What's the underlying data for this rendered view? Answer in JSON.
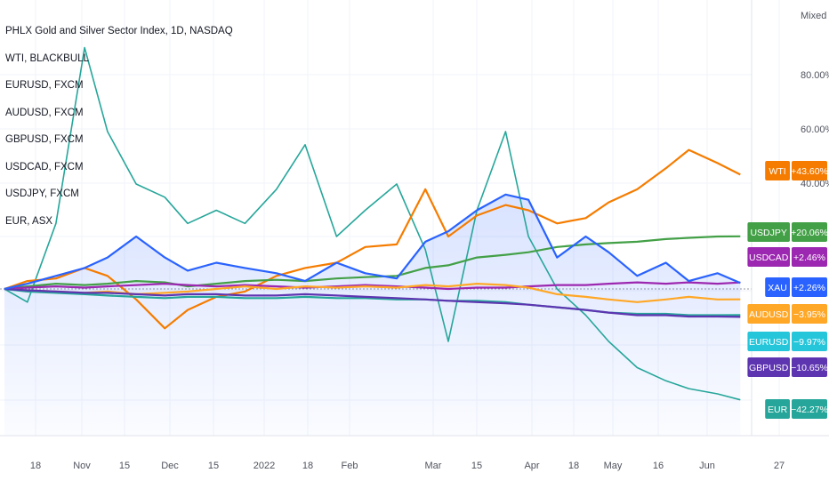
{
  "legend": {
    "main": "PHLX Gold and Silver Sector Index, 1D, NASDAQ",
    "items": [
      "WTI, BLACKBULL",
      "EURUSD, FXCM",
      "AUDUSD, FXCM",
      "GBPUSD, FXCM",
      "USDCAD, FXCM",
      "USDJPY, FXCM",
      "EUR, ASX"
    ]
  },
  "scale_mode": "Mixed",
  "chart_data": {
    "type": "line",
    "xlabels": [
      "18",
      "Nov",
      "15",
      "Dec",
      "15",
      "2022",
      "18",
      "Feb",
      "Mar",
      "15",
      "Apr",
      "18",
      "May",
      "16",
      "Jun",
      "27"
    ],
    "ylabels": [
      "80.00%",
      "60.00%",
      "40.00%"
    ],
    "ylim": [
      -45,
      100
    ],
    "x": [
      "2021-10-07",
      "2021-10-15",
      "2021-10-25",
      "2021-11-04",
      "2021-11-12",
      "2021-11-22",
      "2021-12-02",
      "2021-12-10",
      "2021-12-20",
      "2021-12-30",
      "2022-01-10",
      "2022-01-20",
      "2022-01-31",
      "2022-02-10",
      "2022-02-21",
      "2022-03-03",
      "2022-03-11",
      "2022-03-21",
      "2022-03-31",
      "2022-04-08",
      "2022-04-18",
      "2022-04-28",
      "2022-05-06",
      "2022-05-16",
      "2022-05-26",
      "2022-06-03",
      "2022-06-13",
      "2022-06-21"
    ],
    "series": [
      {
        "name": "XAU",
        "color": "#2962ff",
        "values": [
          0,
          2,
          5,
          8,
          12,
          20,
          12,
          7,
          10,
          8,
          6,
          3,
          10,
          6,
          4,
          18,
          22,
          30,
          36,
          34,
          12,
          20,
          14,
          5,
          10,
          3,
          6,
          2.26
        ]
      },
      {
        "name": "WTI",
        "color": "#f57c00",
        "values": [
          0,
          3,
          4,
          8,
          5,
          -4,
          -15,
          -8,
          -3,
          -1,
          5,
          8,
          10,
          16,
          17,
          38,
          20,
          28,
          32,
          30,
          25,
          27,
          33,
          38,
          46,
          53,
          48,
          43.6
        ]
      },
      {
        "name": "USDJPY",
        "color": "#43a047",
        "values": [
          0,
          1,
          2,
          1.5,
          2,
          3,
          2.5,
          1,
          2,
          3,
          3.5,
          3,
          4,
          4.5,
          5,
          8,
          9,
          12,
          13,
          14,
          16,
          17,
          17.5,
          18,
          19,
          19.5,
          20,
          20.06
        ]
      },
      {
        "name": "USDCAD",
        "color": "#9c27b0",
        "values": [
          0,
          0.5,
          1,
          0.5,
          1,
          1.5,
          2,
          1.5,
          1,
          1.5,
          1,
          0.5,
          1,
          1.5,
          1,
          0.5,
          0,
          0.5,
          0.5,
          1,
          1.5,
          1.5,
          2,
          2.5,
          2,
          2.5,
          2,
          2.46
        ]
      },
      {
        "name": "AUDUSD",
        "color": "#ffa726",
        "values": [
          0,
          -0.5,
          -1,
          -1.5,
          -1,
          -2,
          -1.5,
          -1,
          0,
          1,
          0,
          1,
          0.5,
          1,
          0.5,
          1.5,
          1,
          2,
          1.5,
          0.5,
          -2,
          -3,
          -4,
          -5,
          -4,
          -3,
          -4,
          -3.95
        ]
      },
      {
        "name": "EURUSD",
        "color": "#26a69a",
        "values": [
          0,
          -1,
          -1.5,
          -2,
          -2.5,
          -3,
          -3.5,
          -3,
          -3,
          -3.5,
          -3.5,
          -3,
          -3.5,
          -3.5,
          -4,
          -4,
          -4.5,
          -4.5,
          -5,
          -6,
          -7,
          -8,
          -9,
          -9.5,
          -9.5,
          -10,
          -10,
          -9.97
        ]
      },
      {
        "name": "GBPUSD",
        "color": "#5e35b1",
        "values": [
          0,
          -0.5,
          -1,
          -1.5,
          -1.5,
          -2,
          -2.5,
          -2,
          -2,
          -2.5,
          -2.5,
          -2,
          -2.5,
          -3,
          -3.5,
          -4,
          -4.5,
          -5,
          -5.5,
          -6,
          -7,
          -8,
          -9,
          -10,
          -10,
          -10.5,
          -10.5,
          -10.65
        ]
      },
      {
        "name": "EUR",
        "color": "#26a69a",
        "values": [
          0,
          -5,
          25,
          92,
          60,
          40,
          35,
          25,
          30,
          25,
          38,
          55,
          20,
          30,
          40,
          15,
          -20,
          30,
          60,
          20,
          0,
          -10,
          -20,
          -30,
          -35,
          -38,
          -40,
          -42.27
        ]
      }
    ],
    "tags": [
      {
        "name": "WTI",
        "value": "+43.60%",
        "color": "#f57c00"
      },
      {
        "name": "USDJPY",
        "value": "+20.06%",
        "color": "#43a047"
      },
      {
        "name": "USDCAD",
        "value": "+2.46%",
        "color": "#9c27b0"
      },
      {
        "name": "XAU",
        "value": "+2.26%",
        "color": "#2962ff"
      },
      {
        "name": "AUDUSD",
        "value": "−3.95%",
        "color": "#ffa726"
      },
      {
        "name": "EURUSD",
        "value": "−9.97%",
        "color": "#26c6da"
      },
      {
        "name": "GBPUSD",
        "value": "−10.65%",
        "color": "#5e35b1"
      },
      {
        "name": "EUR",
        "value": "−42.27%",
        "color": "#26a69a"
      }
    ]
  }
}
